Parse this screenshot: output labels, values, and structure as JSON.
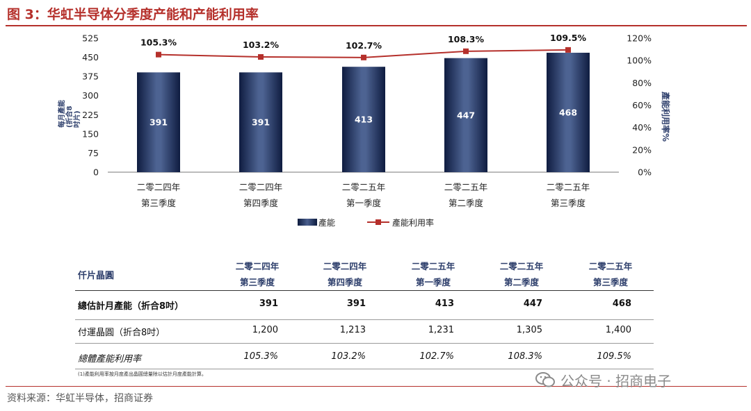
{
  "figure": {
    "title": "图 3：华虹半导体分季度产能和产能利用率",
    "source": "资料来源：华虹半导体，招商证券",
    "watermark": "公众号 · 招商电子",
    "footnote": "(1)產能利用率按月度產出晶圓總量除以估計月度產能計算。"
  },
  "chart_data": {
    "type": "bar",
    "categories": [
      [
        "二零二四年",
        "第三季度"
      ],
      [
        "二零二四年",
        "第四季度"
      ],
      [
        "二零二五年",
        "第一季度"
      ],
      [
        "二零二五年",
        "第二季度"
      ],
      [
        "二零二五年",
        "第三季度"
      ]
    ],
    "series": [
      {
        "name": "產能",
        "kind": "bar",
        "axis": "left",
        "values": [
          391,
          391,
          413,
          447,
          468
        ],
        "color": "#2C3E66"
      },
      {
        "name": "產能利用率",
        "kind": "line",
        "axis": "right",
        "values": [
          105.3,
          103.2,
          102.7,
          108.3,
          109.5
        ],
        "color": "#B5302B"
      }
    ],
    "bar_labels": [
      "391",
      "391",
      "413",
      "447",
      "468"
    ],
    "line_labels": [
      "105.3%",
      "103.2%",
      "102.7%",
      "108.3%",
      "109.5%"
    ],
    "ylabel_left": [
      "每月產能",
      "(折合8吋片)"
    ],
    "ylabel_right": "產能利用率%",
    "ylim_left": [
      0,
      525
    ],
    "yticks_left": [
      "0",
      "75",
      "150",
      "225",
      "300",
      "375",
      "450",
      "525"
    ],
    "ylim_right": [
      0,
      120
    ],
    "yticks_right": [
      "0%",
      "20%",
      "40%",
      "60%",
      "80%",
      "100%",
      "120%"
    ],
    "grid": false,
    "legend_position": "bottom"
  },
  "table": {
    "corner": "仟片晶圓",
    "headers": [
      [
        "二零二四年",
        "第三季度"
      ],
      [
        "二零二四年",
        "第四季度"
      ],
      [
        "二零二五年",
        "第一季度"
      ],
      [
        "二零二五年",
        "第二季度"
      ],
      [
        "二零二五年",
        "第三季度"
      ]
    ],
    "rows": [
      {
        "label": "總估計月產能（折合8吋）",
        "values": [
          "391",
          "391",
          "413",
          "447",
          "468"
        ],
        "bold": true
      },
      {
        "label": "付運晶圓（折合8吋）",
        "values": [
          "1,200",
          "1,213",
          "1,231",
          "1,305",
          "1,400"
        ]
      },
      {
        "label": "總體產能利用率",
        "values": [
          "105.3%",
          "103.2%",
          "102.7%",
          "108.3%",
          "109.5%"
        ],
        "italic": true
      }
    ]
  }
}
